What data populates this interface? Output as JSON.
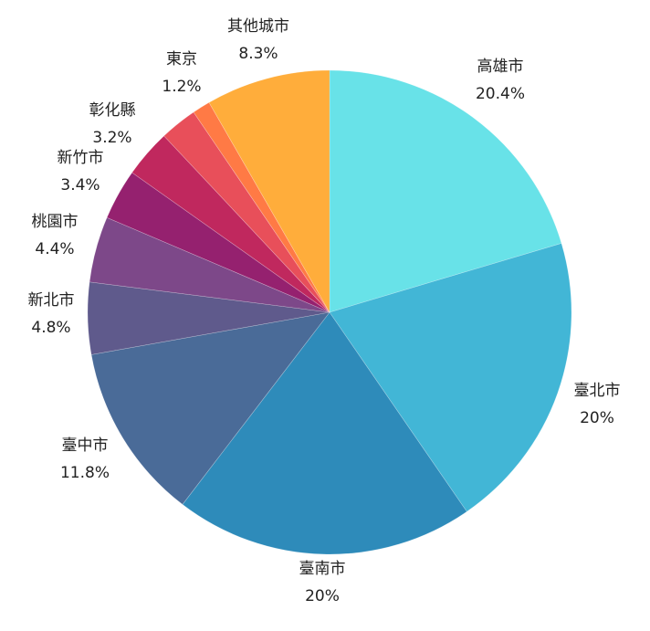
{
  "chart_data": {
    "type": "pie",
    "start_angle": "12 o'clock",
    "direction": "clockwise",
    "slices": [
      {
        "label": "高雄市",
        "value": 20.4,
        "value_label": "20.4%",
        "color": "#68e2e8"
      },
      {
        "label": "臺北市",
        "value": 20,
        "value_label": "20%",
        "color": "#42b6d6"
      },
      {
        "label": "臺南市",
        "value": 20,
        "value_label": "20%",
        "color": "#2e8bba"
      },
      {
        "label": "臺中市",
        "value": 11.8,
        "value_label": "11.8%",
        "color": "#4a6b98"
      },
      {
        "label": "新北市",
        "value": 4.8,
        "value_label": "4.8%",
        "color": "#5f5a8c"
      },
      {
        "label": "桃園市",
        "value": 4.4,
        "value_label": "4.4%",
        "color": "#7d4889"
      },
      {
        "label": "新竹市",
        "value": 3.4,
        "value_label": "3.4%",
        "color": "#95216f"
      },
      {
        "label": "彰化縣",
        "value": 3.2,
        "value_label": "3.2%",
        "color": "#c0285e"
      },
      {
        "label": "",
        "value": 2.5,
        "value_label": "",
        "color": "#e84f5a"
      },
      {
        "label": "東京",
        "value": 1.2,
        "value_label": "1.2%",
        "color": "#ff7a45"
      },
      {
        "label": "其他城市",
        "value": 8.3,
        "value_label": "8.3%",
        "color": "#ffad3b"
      }
    ]
  }
}
